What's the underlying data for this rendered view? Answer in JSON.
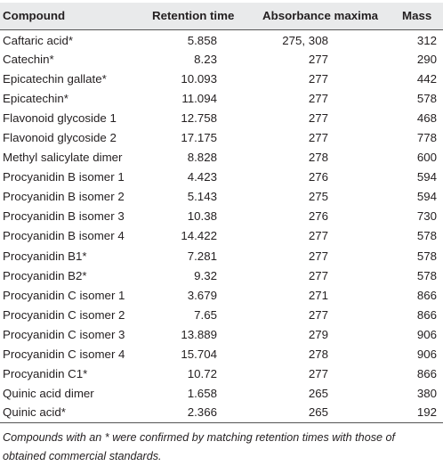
{
  "table": {
    "headers": [
      "Compound",
      "Retention time",
      "Absorbance maxima",
      "Mass"
    ],
    "rows": [
      [
        "Caftaric acid*",
        "5.858",
        "275, 308",
        "312"
      ],
      [
        "Catechin*",
        "8.23",
        "277",
        "290"
      ],
      [
        "Epicatechin gallate*",
        "10.093",
        "277",
        "442"
      ],
      [
        "Epicatechin*",
        "11.094",
        "277",
        "578"
      ],
      [
        "Flavonoid glycoside 1",
        "12.758",
        "277",
        "468"
      ],
      [
        "Flavonoid glycoside 2",
        "17.175",
        "277",
        "778"
      ],
      [
        "Methyl salicylate dimer",
        "8.828",
        "278",
        "600"
      ],
      [
        "Procyanidin B isomer 1",
        "4.423",
        "276",
        "594"
      ],
      [
        "Procyanidin B isomer 2",
        "5.143",
        "275",
        "594"
      ],
      [
        "Procyanidin B isomer 3",
        "10.38",
        "276",
        "730"
      ],
      [
        "Procyanidin B isomer 4",
        "14.422",
        "277",
        "578"
      ],
      [
        "Procyanidin B1*",
        "7.281",
        "277",
        "578"
      ],
      [
        "Procyanidin B2*",
        "9.32",
        "277",
        "578"
      ],
      [
        "Procyanidin C isomer 1",
        "3.679",
        "271",
        "866"
      ],
      [
        "Procyanidin C isomer 2",
        "7.65",
        "277",
        "866"
      ],
      [
        "Procyanidin C isomer 3",
        "13.889",
        "279",
        "906"
      ],
      [
        "Procyanidin C isomer 4",
        "15.704",
        "278",
        "906"
      ],
      [
        "Procyanidin C1*",
        "10.72",
        "277",
        "866"
      ],
      [
        "Quinic acid dimer",
        "1.658",
        "265",
        "380"
      ],
      [
        "Quinic acid*",
        "2.366",
        "265",
        "192"
      ]
    ]
  },
  "footnote": "Compounds with an * were confirmed by matching retention times with those of obtained commercial standards.",
  "colors": {
    "header_bg": "#e9eaeb",
    "text": "#231f20",
    "rule": "#555555"
  }
}
